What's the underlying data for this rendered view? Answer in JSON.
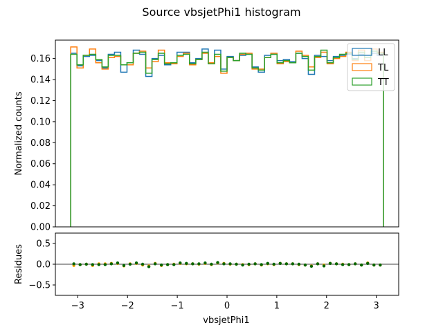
{
  "chart_data": [
    {
      "type": "step-histogram",
      "title": "Source vbsjetPhi1 histogram",
      "xlabel": "",
      "ylabel": "Normalized counts",
      "xlim": [
        -3.45,
        3.45
      ],
      "ylim": [
        0.0,
        0.1775
      ],
      "yticks": [
        0.0,
        0.02,
        0.04,
        0.06,
        0.08,
        0.1,
        0.12,
        0.14,
        0.16
      ],
      "ytick_labels": [
        "0.00",
        "0.02",
        "0.04",
        "0.06",
        "0.08",
        "0.10",
        "0.12",
        "0.14",
        "0.16"
      ],
      "bin_edges": [
        -3.1416,
        -3.016,
        -2.8903,
        -2.7646,
        -2.6389,
        -2.5133,
        -2.3876,
        -2.2619,
        -2.1363,
        -2.0106,
        -1.885,
        -1.7593,
        -1.6336,
        -1.508,
        -1.3823,
        -1.2566,
        -1.131,
        -1.0053,
        -0.8796,
        -0.754,
        -0.6283,
        -0.5027,
        -0.377,
        -0.2513,
        -0.1257,
        0.0,
        0.1257,
        0.2513,
        0.377,
        0.5027,
        0.6283,
        0.754,
        0.8796,
        1.0053,
        1.131,
        1.2566,
        1.3823,
        1.508,
        1.6336,
        1.7593,
        1.885,
        2.0106,
        2.1363,
        2.2619,
        2.3876,
        2.5133,
        2.6389,
        2.7646,
        2.8903,
        3.016,
        3.1416
      ],
      "legend_position": "top-right",
      "series": [
        {
          "name": "LL",
          "color": "#1f77b4",
          "values": [
            0.165,
            0.153,
            0.162,
            0.163,
            0.158,
            0.151,
            0.164,
            0.166,
            0.147,
            0.156,
            0.168,
            0.164,
            0.143,
            0.16,
            0.163,
            0.154,
            0.155,
            0.166,
            0.166,
            0.156,
            0.16,
            0.169,
            0.155,
            0.168,
            0.15,
            0.162,
            0.158,
            0.163,
            0.164,
            0.152,
            0.147,
            0.163,
            0.164,
            0.158,
            0.159,
            0.157,
            0.165,
            0.16,
            0.145,
            0.163,
            0.162,
            0.158,
            0.162,
            0.163,
            0.164,
            0.16,
            0.164,
            0.163,
            0.165,
            0.163
          ]
        },
        {
          "name": "TL",
          "color": "#ff7f0e",
          "values": [
            0.171,
            0.151,
            0.163,
            0.169,
            0.156,
            0.15,
            0.161,
            0.162,
            0.154,
            0.154,
            0.165,
            0.167,
            0.151,
            0.157,
            0.168,
            0.156,
            0.155,
            0.162,
            0.165,
            0.154,
            0.159,
            0.165,
            0.156,
            0.162,
            0.146,
            0.161,
            0.158,
            0.164,
            0.165,
            0.15,
            0.15,
            0.161,
            0.165,
            0.155,
            0.157,
            0.156,
            0.167,
            0.163,
            0.152,
            0.161,
            0.166,
            0.155,
            0.16,
            0.162,
            0.166,
            0.158,
            0.168,
            0.158,
            0.169,
            0.166
          ]
        },
        {
          "name": "TT",
          "color": "#2ca02c",
          "values": [
            0.164,
            0.154,
            0.163,
            0.164,
            0.159,
            0.152,
            0.163,
            0.163,
            0.154,
            0.156,
            0.165,
            0.166,
            0.146,
            0.159,
            0.165,
            0.155,
            0.156,
            0.163,
            0.164,
            0.155,
            0.159,
            0.166,
            0.155,
            0.164,
            0.148,
            0.161,
            0.158,
            0.165,
            0.164,
            0.151,
            0.149,
            0.161,
            0.164,
            0.156,
            0.158,
            0.156,
            0.165,
            0.162,
            0.149,
            0.162,
            0.168,
            0.156,
            0.161,
            0.164,
            0.165,
            0.159,
            0.166,
            0.161,
            0.167,
            0.165
          ]
        }
      ]
    },
    {
      "type": "scatter",
      "title": "",
      "xlabel": "vbsjetPhi1",
      "ylabel": "Residues",
      "xlim": [
        -3.45,
        3.45
      ],
      "ylim": [
        -0.75,
        0.75
      ],
      "xticks": [
        -3,
        -2,
        -1,
        0,
        1,
        2,
        3
      ],
      "xtick_labels": [
        "−3",
        "−2",
        "−1",
        "0",
        "1",
        "2",
        "3"
      ],
      "yticks": [
        -0.5,
        0.0,
        0.5
      ],
      "ytick_labels": [
        "−0.5",
        "0.0",
        "0.5"
      ],
      "reference_line": 0.0,
      "series": [
        {
          "name": "",
          "color": "#ffa500",
          "x": [
            -3.079,
            -2.953,
            -2.827,
            -2.702,
            -2.576,
            -2.45,
            -2.325,
            -2.199,
            -2.073,
            -1.948,
            -1.822,
            -1.696,
            -1.571,
            -1.445,
            -1.319,
            -1.194,
            -1.068,
            -0.942,
            -0.817,
            -0.691,
            -0.565,
            -0.44,
            -0.314,
            -0.188,
            -0.063,
            0.063,
            0.188,
            0.314,
            0.44,
            0.565,
            0.691,
            0.817,
            0.942,
            1.068,
            1.194,
            1.319,
            1.445,
            1.571,
            1.696,
            1.822,
            1.948,
            2.073,
            2.199,
            2.325,
            2.45,
            2.576,
            2.702,
            2.827,
            2.953,
            3.079
          ],
          "y": [
            -0.03,
            -0.01,
            0.0,
            -0.03,
            0.01,
            0.01,
            0.02,
            0.02,
            -0.04,
            0.01,
            0.02,
            -0.02,
            -0.04,
            0.02,
            -0.03,
            -0.01,
            0.0,
            0.02,
            0.01,
            0.01,
            0.0,
            0.02,
            -0.01,
            0.03,
            0.02,
            0.0,
            0.0,
            -0.01,
            -0.01,
            0.01,
            -0.02,
            0.01,
            -0.01,
            0.02,
            0.01,
            0.01,
            -0.01,
            -0.02,
            -0.04,
            0.01,
            -0.02,
            0.02,
            0.01,
            0.0,
            -0.01,
            0.01,
            -0.02,
            0.03,
            -0.02,
            -0.02
          ]
        },
        {
          "name": "",
          "color": "#006400",
          "x": [
            -3.079,
            -2.953,
            -2.827,
            -2.702,
            -2.576,
            -2.45,
            -2.325,
            -2.199,
            -2.073,
            -1.948,
            -1.822,
            -1.696,
            -1.571,
            -1.445,
            -1.319,
            -1.194,
            -1.068,
            -0.942,
            -0.817,
            -0.691,
            -0.565,
            -0.44,
            -0.314,
            -0.188,
            -0.063,
            0.063,
            0.188,
            0.314,
            0.44,
            0.565,
            0.691,
            0.817,
            0.942,
            1.068,
            1.194,
            1.319,
            1.445,
            1.571,
            1.696,
            1.822,
            1.948,
            2.073,
            2.199,
            2.325,
            2.45,
            2.576,
            2.702,
            2.827,
            2.953,
            3.079
          ],
          "y": [
            0.01,
            -0.01,
            0.0,
            -0.01,
            -0.01,
            -0.01,
            0.01,
            0.03,
            -0.03,
            0.0,
            0.03,
            0.0,
            -0.06,
            0.01,
            -0.02,
            -0.01,
            -0.01,
            0.03,
            0.02,
            0.01,
            0.01,
            0.03,
            0.0,
            0.04,
            0.01,
            0.01,
            0.0,
            -0.02,
            0.0,
            0.01,
            -0.01,
            0.02,
            0.0,
            0.02,
            0.01,
            0.01,
            0.0,
            -0.02,
            -0.05,
            0.01,
            -0.04,
            0.02,
            0.01,
            -0.01,
            -0.01,
            0.01,
            -0.02,
            0.02,
            -0.02,
            -0.02
          ]
        }
      ]
    }
  ]
}
